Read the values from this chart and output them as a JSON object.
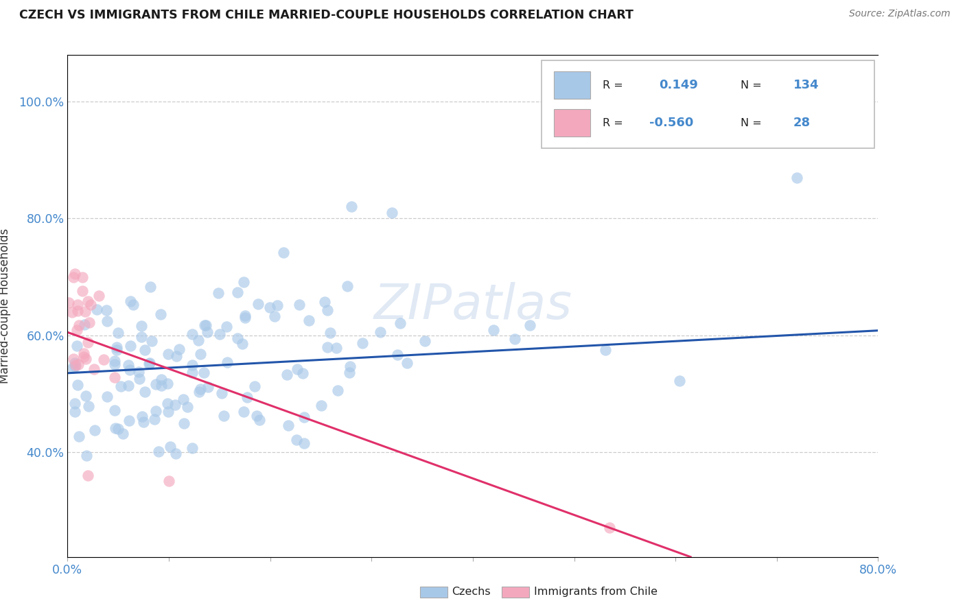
{
  "title": "CZECH VS IMMIGRANTS FROM CHILE MARRIED-COUPLE HOUSEHOLDS CORRELATION CHART",
  "source": "Source: ZipAtlas.com",
  "ylabel": "Married-couple Households",
  "ylabel_ticks": [
    "40.0%",
    "60.0%",
    "80.0%",
    "100.0%"
  ],
  "ylabel_tick_vals": [
    0.4,
    0.6,
    0.8,
    1.0
  ],
  "xlim": [
    0.0,
    0.8
  ],
  "ylim": [
    0.22,
    1.08
  ],
  "czech_color": "#a8c8e8",
  "chile_color": "#f4a8be",
  "czech_line_color": "#2255aa",
  "chile_line_color": "#e0306a",
  "background_color": "#ffffff",
  "grid_color": "#cccccc",
  "watermark": "ZIPatlas",
  "legend_R1": "0.149",
  "legend_N1": "134",
  "legend_R2": "-0.560",
  "legend_N2": "28",
  "label1": "Czechs",
  "label2": "Immigrants from Chile"
}
